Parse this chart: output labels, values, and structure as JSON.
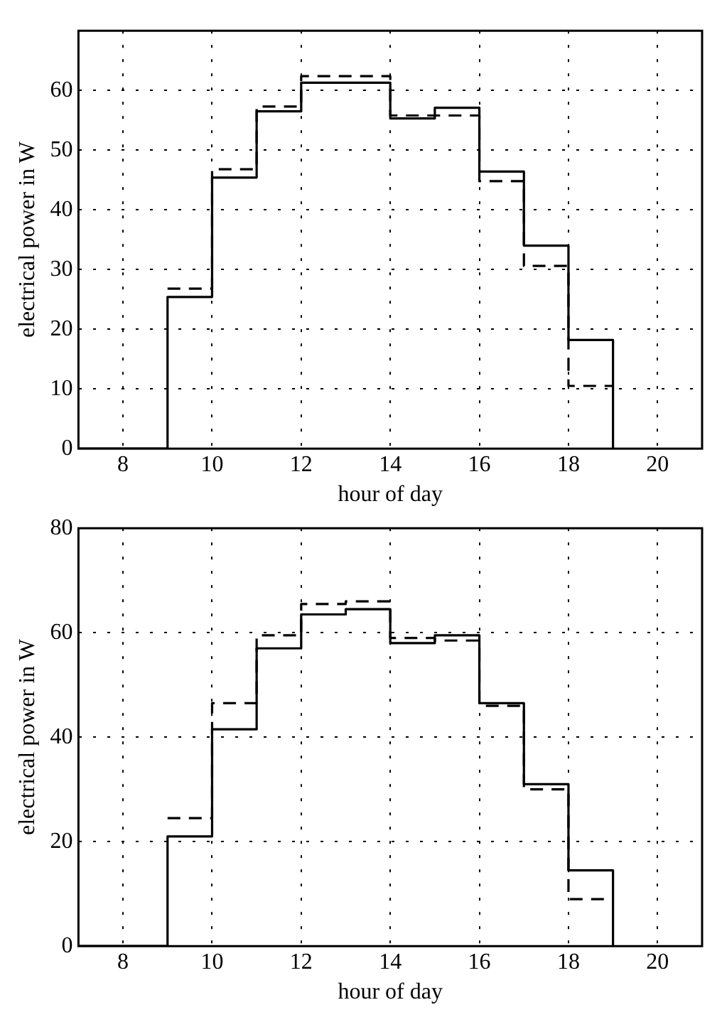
{
  "chart_data": [
    {
      "type": "step",
      "xlabel": "hour of day",
      "ylabel": "electrical power in W",
      "series": [
        {
          "color": "#000000",
          "line_style": "solid",
          "x": [
            7,
            9,
            10,
            11,
            12,
            13,
            14,
            15,
            16,
            17,
            18,
            19
          ],
          "values": [
            0,
            25.4,
            45.4,
            56.5,
            61.3,
            61.3,
            55.3,
            57.1,
            46.4,
            34,
            18.2,
            0
          ]
        },
        {
          "color": "#000000",
          "line_style": "dashed",
          "x": [
            9,
            10,
            11,
            12,
            13,
            14,
            15,
            16,
            17,
            18,
            19
          ],
          "values": [
            26.8,
            46.8,
            57.3,
            62.4,
            62.4,
            55.8,
            55.8,
            44.8,
            30.6,
            10.5,
            10.5
          ]
        }
      ],
      "xlim": [
        7,
        21
      ],
      "xticks": [
        8,
        10,
        12,
        14,
        16,
        18,
        20
      ],
      "ylim": [
        0,
        70
      ],
      "yticks": [
        0,
        10,
        20,
        30,
        40,
        50,
        60
      ],
      "grid": true,
      "marker": "none",
      "legend": false
    },
    {
      "type": "step",
      "xlabel": "hour of day",
      "ylabel": "electrical power in W",
      "series": [
        {
          "color": "#000000",
          "line_style": "solid",
          "x": [
            7,
            9,
            10,
            11,
            12,
            13,
            14,
            15,
            16,
            17,
            18,
            19
          ],
          "values": [
            0,
            21,
            41.5,
            57,
            63.5,
            64.5,
            58,
            59.5,
            46.5,
            31,
            14.5,
            0
          ]
        },
        {
          "color": "#000000",
          "line_style": "dashed",
          "x": [
            9,
            10,
            11,
            12,
            13,
            14,
            15,
            16,
            17,
            18,
            19
          ],
          "values": [
            24.5,
            46.5,
            59.5,
            65.5,
            66,
            59,
            58.5,
            46,
            30,
            9,
            9
          ]
        }
      ],
      "xlim": [
        7,
        21
      ],
      "xticks": [
        8,
        10,
        12,
        14,
        16,
        18,
        20
      ],
      "ylim": [
        0,
        80
      ],
      "yticks": [
        0,
        20,
        40,
        60,
        80
      ],
      "grid": true,
      "marker": "none",
      "legend": false
    }
  ]
}
